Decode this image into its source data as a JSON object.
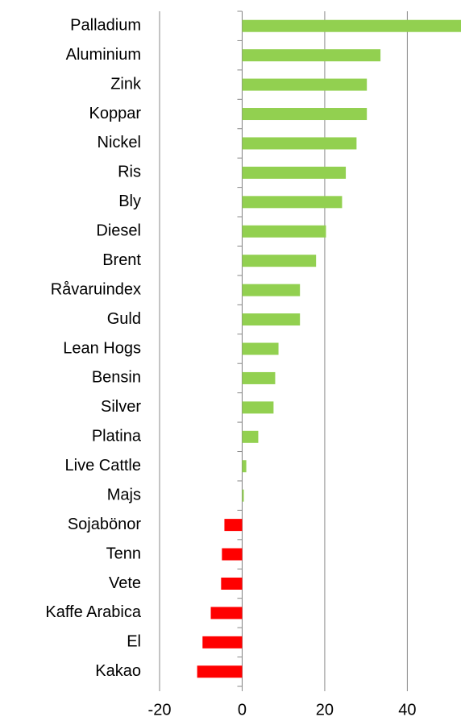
{
  "chart_data": {
    "type": "barh",
    "categories": [
      "Palladium",
      "Aluminium",
      "Zink",
      "Koppar",
      "Nickel",
      "Ris",
      "Bly",
      "Diesel",
      "Brent",
      "Råvaruindex",
      "Guld",
      "Lean Hogs",
      "Bensin",
      "Silver",
      "Platina",
      "Live Cattle",
      "Majs",
      "Sojabönor",
      "Tenn",
      "Vete",
      "Kaffe Arabica",
      "El",
      "Kakao"
    ],
    "values": [
      53,
      33.5,
      30.2,
      30.2,
      27.7,
      25.1,
      24.2,
      20.3,
      17.9,
      14.0,
      14.0,
      8.8,
      8.0,
      7.6,
      3.9,
      1.0,
      0.4,
      -4.3,
      -4.9,
      -5.1,
      -7.6,
      -9.6,
      -10.9
    ],
    "colors": {
      "positive": "#92d050",
      "negative": "#ff0000"
    },
    "xlim": [
      -20,
      53
    ],
    "xticks": [
      -20,
      0,
      20,
      40
    ],
    "grid": true
  }
}
